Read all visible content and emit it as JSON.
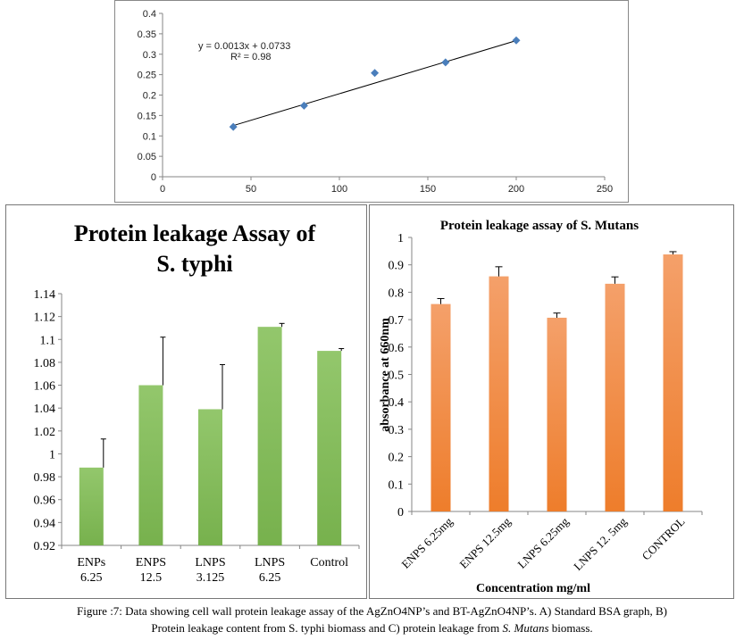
{
  "chart_data": [
    {
      "id": "A",
      "type": "scatter",
      "title": "",
      "xlabel": "",
      "ylabel": "",
      "xlim": [
        0,
        250
      ],
      "ylim": [
        0,
        0.4
      ],
      "xticks": [
        "0",
        "50",
        "100",
        "150",
        "200",
        "250"
      ],
      "yticks": [
        "0",
        "0.05",
        "0.1",
        "0.15",
        "0.2",
        "0.25",
        "0.3",
        "0.35",
        "0.4"
      ],
      "points": [
        {
          "x": 40,
          "y": 0.122
        },
        {
          "x": 80,
          "y": 0.174
        },
        {
          "x": 120,
          "y": 0.254
        },
        {
          "x": 160,
          "y": 0.28
        },
        {
          "x": 200,
          "y": 0.334
        }
      ],
      "trendline": {
        "slope": 0.0013,
        "intercept": 0.0733,
        "x_range": [
          40,
          200
        ]
      },
      "equation_label": "y = 0.0013x + 0.0733",
      "r2_label": "R² = 0.98",
      "marker_color": "#4a7ebb",
      "grid": false
    },
    {
      "id": "B",
      "type": "bar",
      "title_line1": "Protein leakage Assay of",
      "title_line2": "S. typhi",
      "xlabel": "",
      "ylabel": "",
      "ylim": [
        0.92,
        1.14
      ],
      "yticks": [
        "0.92",
        "0.94",
        "0.96",
        "0.98",
        "1",
        "1.02",
        "1.04",
        "1.06",
        "1.08",
        "1.1",
        "1.12",
        "1.14"
      ],
      "categories": [
        {
          "line1": "ENPs",
          "line2": "6.25"
        },
        {
          "line1": "ENPS",
          "line2": "12.5"
        },
        {
          "line1": "LNPS",
          "line2": "3.125"
        },
        {
          "line1": "LNPS",
          "line2": "6.25"
        },
        {
          "line1": "Control",
          "line2": ""
        }
      ],
      "values": [
        0.988,
        1.06,
        1.039,
        1.111,
        1.09
      ],
      "errors": [
        0.025,
        0.042,
        0.039,
        0.003,
        0.002
      ],
      "bar_color": "#77b14d",
      "bar_color_light": "#93c76c",
      "grid": false
    },
    {
      "id": "C",
      "type": "bar",
      "title": "Protein leakage assay of S. Mutans",
      "xlabel": "Concentration mg/ml",
      "ylabel": "absorbance at 660nm",
      "ylim": [
        0,
        1
      ],
      "yticks": [
        "0",
        "0.1",
        "0.2",
        "0.3",
        "0.4",
        "0.5",
        "0.6",
        "0.7",
        "0.8",
        "0.9",
        "1"
      ],
      "categories": [
        "ENPS 6.25mg",
        "ENPS 12.5mg",
        "LNPS 6.25mg",
        "LNPS 12. 5mg",
        "CONTROL"
      ],
      "values": [
        0.757,
        0.858,
        0.707,
        0.831,
        0.938
      ],
      "errors": [
        0.02,
        0.035,
        0.017,
        0.025,
        0.01
      ],
      "bar_color": "#ee7d2b",
      "bar_color_light": "#f4a06a",
      "grid": false
    }
  ],
  "caption": {
    "line1": "Figure :7: Data showing cell wall protein leakage assay of the AgZnO4NP’s and BT-AgZnO4NP’s. A) Standard BSA graph, B)",
    "line2_pre": "Protein leakage content from S. typhi biomass and C) protein leakage from ",
    "line2_italic": "S. Mutans",
    "line2_post": " biomass."
  }
}
